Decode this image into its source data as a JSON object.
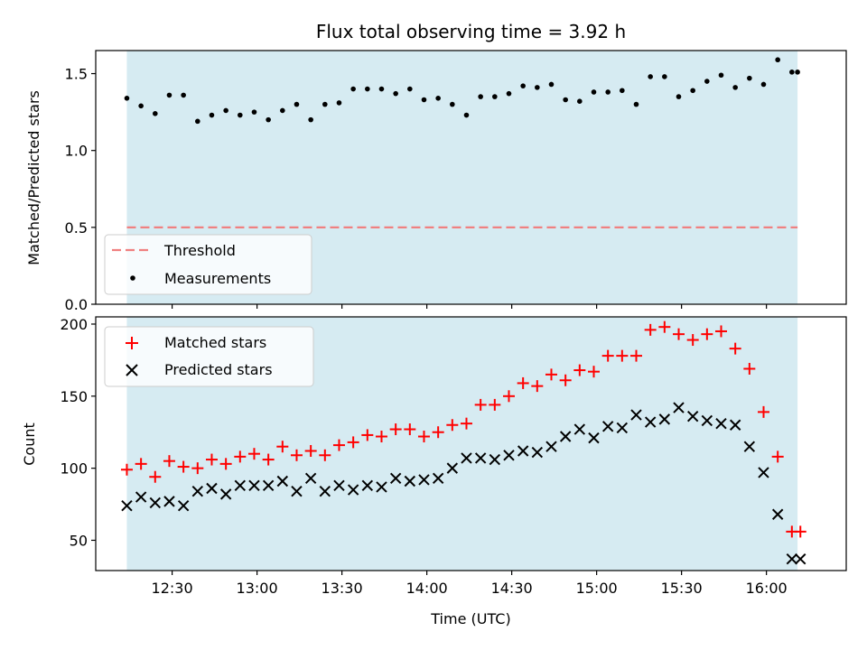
{
  "chart_data": [
    {
      "type": "scatter",
      "title": "Flux total observing time = 3.92 h",
      "xlabel": "",
      "ylabel": "Matched/Predicted stars",
      "xlim": [
        12.05,
        16.47
      ],
      "ylim": [
        0.0,
        1.65
      ],
      "yticks": [
        0.0,
        0.5,
        1.0,
        1.5
      ],
      "ytick_labels": [
        "0.0",
        "0.5",
        "1.0",
        "1.5"
      ],
      "shaded_span": [
        12.2333,
        16.1833
      ],
      "threshold": {
        "name": "Threshold",
        "value": 0.5,
        "color": "#f08080"
      },
      "series": [
        {
          "name": "Measurements",
          "color": "#000000",
          "marker": "dot",
          "x": [
            12.2333,
            12.3167,
            12.4,
            12.4833,
            12.5667,
            12.65,
            12.7333,
            12.8167,
            12.9,
            12.9833,
            13.0667,
            13.15,
            13.2333,
            13.3167,
            13.4,
            13.4833,
            13.5667,
            13.65,
            13.7333,
            13.8167,
            13.9,
            13.9833,
            14.0667,
            14.15,
            14.2333,
            14.3167,
            14.4,
            14.4833,
            14.5667,
            14.65,
            14.7333,
            14.8167,
            14.9,
            14.9833,
            15.0667,
            15.15,
            15.2333,
            15.3167,
            15.4,
            15.4833,
            15.5667,
            15.65,
            15.7333,
            15.8167,
            15.9,
            15.9833,
            16.0667,
            16.15,
            16.1833
          ],
          "y": [
            1.34,
            1.29,
            1.24,
            1.36,
            1.36,
            1.19,
            1.23,
            1.26,
            1.23,
            1.25,
            1.2,
            1.26,
            1.3,
            1.2,
            1.3,
            1.31,
            1.4,
            1.4,
            1.4,
            1.37,
            1.4,
            1.33,
            1.34,
            1.3,
            1.23,
            1.35,
            1.35,
            1.37,
            1.42,
            1.41,
            1.43,
            1.33,
            1.32,
            1.38,
            1.38,
            1.39,
            1.3,
            1.48,
            1.48,
            1.35,
            1.39,
            1.45,
            1.49,
            1.41,
            1.47,
            1.43,
            1.59,
            1.51,
            1.51
          ]
        }
      ],
      "legend": {
        "position": "lower-left",
        "entries": [
          "Threshold",
          "Measurements"
        ]
      }
    },
    {
      "type": "scatter",
      "title": "",
      "xlabel": "Time (UTC)",
      "ylabel": "Count",
      "xlim": [
        12.05,
        16.47
      ],
      "ylim": [
        29,
        205
      ],
      "yticks": [
        50,
        100,
        150,
        200
      ],
      "ytick_labels": [
        "50",
        "100",
        "150",
        "200"
      ],
      "xticks": [
        12.5,
        13.0,
        13.5,
        14.0,
        14.5,
        15.0,
        15.5,
        16.0
      ],
      "xtick_labels": [
        "12:30",
        "13:00",
        "13:30",
        "14:00",
        "14:30",
        "15:00",
        "15:30",
        "16:00"
      ],
      "shaded_span": [
        12.2333,
        16.1833
      ],
      "series": [
        {
          "name": "Matched stars",
          "color": "#ff0000",
          "marker": "plus",
          "x": [
            12.2333,
            12.3167,
            12.4,
            12.4833,
            12.5667,
            12.65,
            12.7333,
            12.8167,
            12.9,
            12.9833,
            13.0667,
            13.15,
            13.2333,
            13.3167,
            13.4,
            13.4833,
            13.5667,
            13.65,
            13.7333,
            13.8167,
            13.9,
            13.9833,
            14.0667,
            14.15,
            14.2333,
            14.3167,
            14.4,
            14.4833,
            14.5667,
            14.65,
            14.7333,
            14.8167,
            14.9,
            14.9833,
            15.0667,
            15.15,
            15.2333,
            15.3167,
            15.4,
            15.4833,
            15.5667,
            15.65,
            15.7333,
            15.8167,
            15.9,
            15.9833,
            16.0667,
            16.15,
            16.2
          ],
          "y": [
            99,
            103,
            94,
            105,
            101,
            100,
            106,
            103,
            108,
            110,
            106,
            115,
            109,
            112,
            109,
            116,
            118,
            123,
            122,
            127,
            127,
            122,
            125,
            130,
            131,
            144,
            144,
            150,
            159,
            157,
            165,
            161,
            168,
            167,
            178,
            178,
            178,
            196,
            198,
            193,
            189,
            193,
            195,
            183,
            169,
            139,
            108,
            56,
            56
          ]
        },
        {
          "name": "Predicted stars",
          "color": "#000000",
          "marker": "x",
          "x": [
            12.2333,
            12.3167,
            12.4,
            12.4833,
            12.5667,
            12.65,
            12.7333,
            12.8167,
            12.9,
            12.9833,
            13.0667,
            13.15,
            13.2333,
            13.3167,
            13.4,
            13.4833,
            13.5667,
            13.65,
            13.7333,
            13.8167,
            13.9,
            13.9833,
            14.0667,
            14.15,
            14.2333,
            14.3167,
            14.4,
            14.4833,
            14.5667,
            14.65,
            14.7333,
            14.8167,
            14.9,
            14.9833,
            15.0667,
            15.15,
            15.2333,
            15.3167,
            15.4,
            15.4833,
            15.5667,
            15.65,
            15.7333,
            15.8167,
            15.9,
            15.9833,
            16.0667,
            16.15,
            16.2
          ],
          "y": [
            74,
            80,
            76,
            77,
            74,
            84,
            86,
            82,
            88,
            88,
            88,
            91,
            84,
            93,
            84,
            88,
            85,
            88,
            87,
            93,
            91,
            92,
            93,
            100,
            107,
            107,
            106,
            109,
            112,
            111,
            115,
            122,
            127,
            121,
            129,
            128,
            137,
            132,
            134,
            142,
            136,
            133,
            131,
            130,
            115,
            97,
            68,
            37,
            37
          ]
        }
      ],
      "legend": {
        "position": "top-left",
        "entries": [
          "Matched stars",
          "Predicted stars"
        ]
      }
    }
  ]
}
